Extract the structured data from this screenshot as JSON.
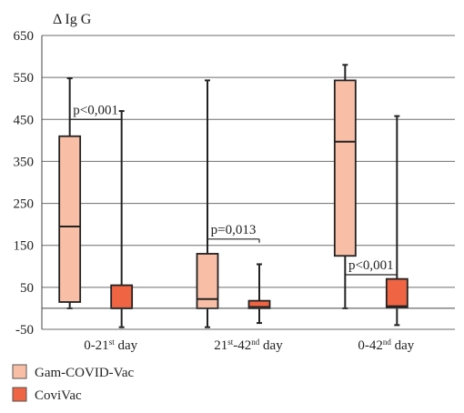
{
  "chart_data": {
    "type": "boxplot",
    "ylabel": "Δ Ig G",
    "ylim": [
      -50,
      650
    ],
    "yticks": [
      -50,
      50,
      150,
      250,
      350,
      450,
      550,
      650
    ],
    "grid": true,
    "legend_position": "bottom-left",
    "categories": [
      {
        "base": "0-21",
        "sup": "st",
        "tail": " day"
      },
      {
        "base": "21",
        "sup": "st",
        "mid": "-42",
        "sup2": "nd",
        "tail": " day"
      },
      {
        "base": "0-42",
        "sup": "nd",
        "tail": " day"
      }
    ],
    "series": [
      {
        "name": "Gam-COVID-Vac",
        "color": "#f9bfa6",
        "boxes": [
          {
            "min": 0,
            "q1": 15,
            "median": 195,
            "q3": 410,
            "max": 548
          },
          {
            "min": -45,
            "q1": 0,
            "median": 22,
            "q3": 130,
            "max": 543
          },
          {
            "min": 0,
            "q1": 125,
            "median": 397,
            "q3": 543,
            "max": 580
          }
        ]
      },
      {
        "name": "CoviVac",
        "color": "#ef6543",
        "boxes": [
          {
            "min": -45,
            "q1": 0,
            "median": 0,
            "q3": 55,
            "max": 470
          },
          {
            "min": -35,
            "q1": 0,
            "median": 3,
            "q3": 18,
            "max": 105
          },
          {
            "min": -40,
            "q1": 2,
            "median": 5,
            "q3": 70,
            "max": 458
          }
        ]
      }
    ],
    "annotations": [
      {
        "text": "p<0,001",
        "group": 0,
        "y": 450
      },
      {
        "text": "p=0,013",
        "group": 1,
        "y": 165
      },
      {
        "text": "p<0,001",
        "group": 2,
        "y": 80
      }
    ]
  }
}
